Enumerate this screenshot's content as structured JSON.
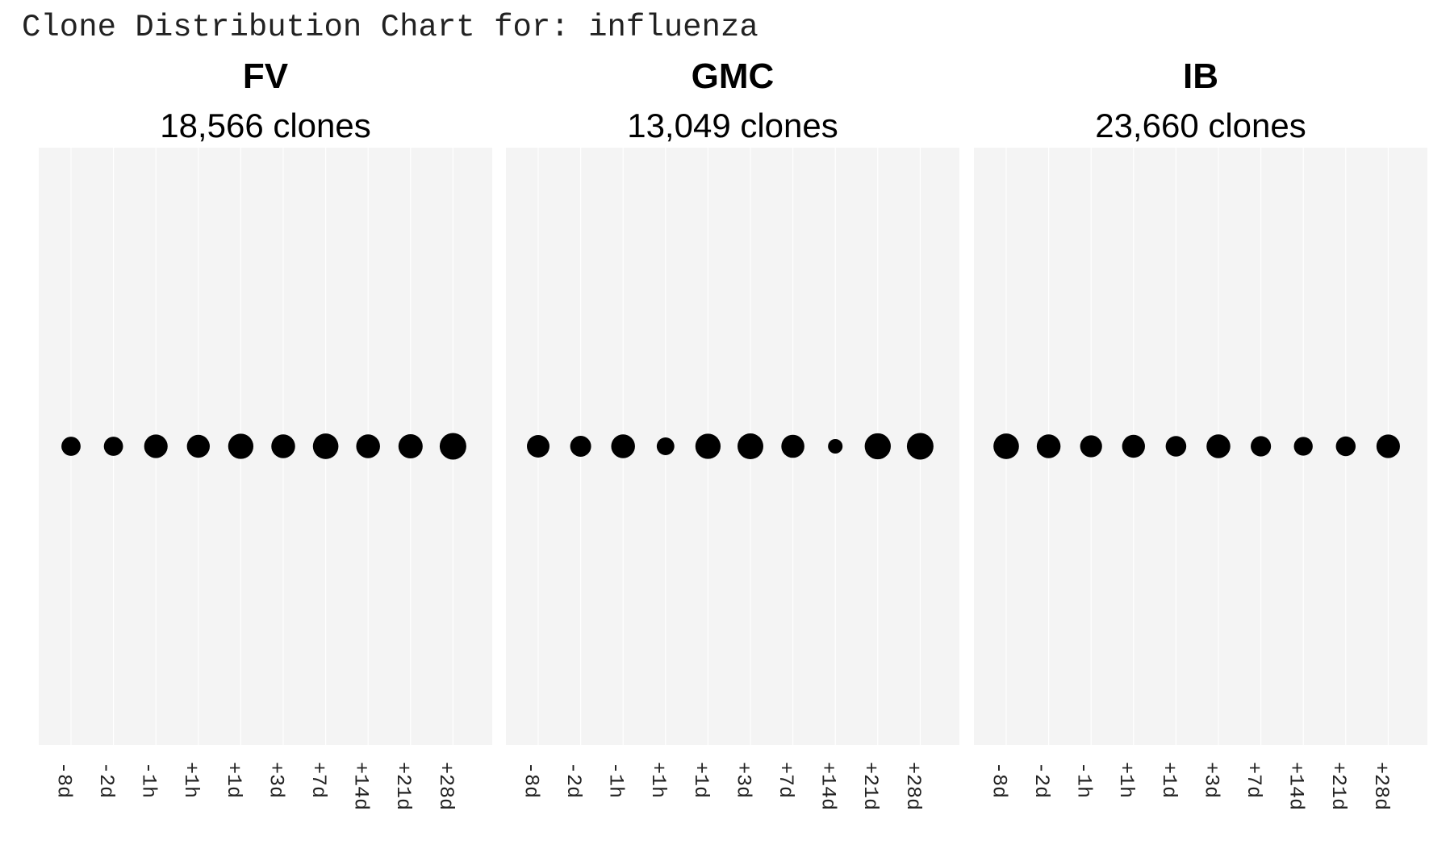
{
  "chart_data": {
    "type": "scatter",
    "title": "Clone Distribution Chart for: influenza",
    "categories": [
      "-8d",
      "-2d",
      "-1h",
      "+1h",
      "+1d",
      "+3d",
      "+7d",
      "+14d",
      "+21d",
      "+28d"
    ],
    "point_color": "#000000",
    "panel_background": "#f4f4f4",
    "grid_color": "#ffffff",
    "panels": [
      {
        "name": "FV",
        "subtitle": "18,566 clones",
        "sizes": [
          0.52,
          0.52,
          0.78,
          0.74,
          0.9,
          0.8,
          0.92,
          0.8,
          0.83,
          1.0
        ]
      },
      {
        "name": "GMC",
        "subtitle": "13,049 clones",
        "sizes": [
          0.72,
          0.62,
          0.8,
          0.44,
          0.9,
          0.94,
          0.75,
          0.3,
          0.96,
          1.0
        ]
      },
      {
        "name": "IB",
        "subtitle": "23,660 clones",
        "sizes": [
          0.92,
          0.8,
          0.68,
          0.74,
          0.6,
          0.8,
          0.58,
          0.5,
          0.55,
          0.78
        ]
      }
    ]
  }
}
